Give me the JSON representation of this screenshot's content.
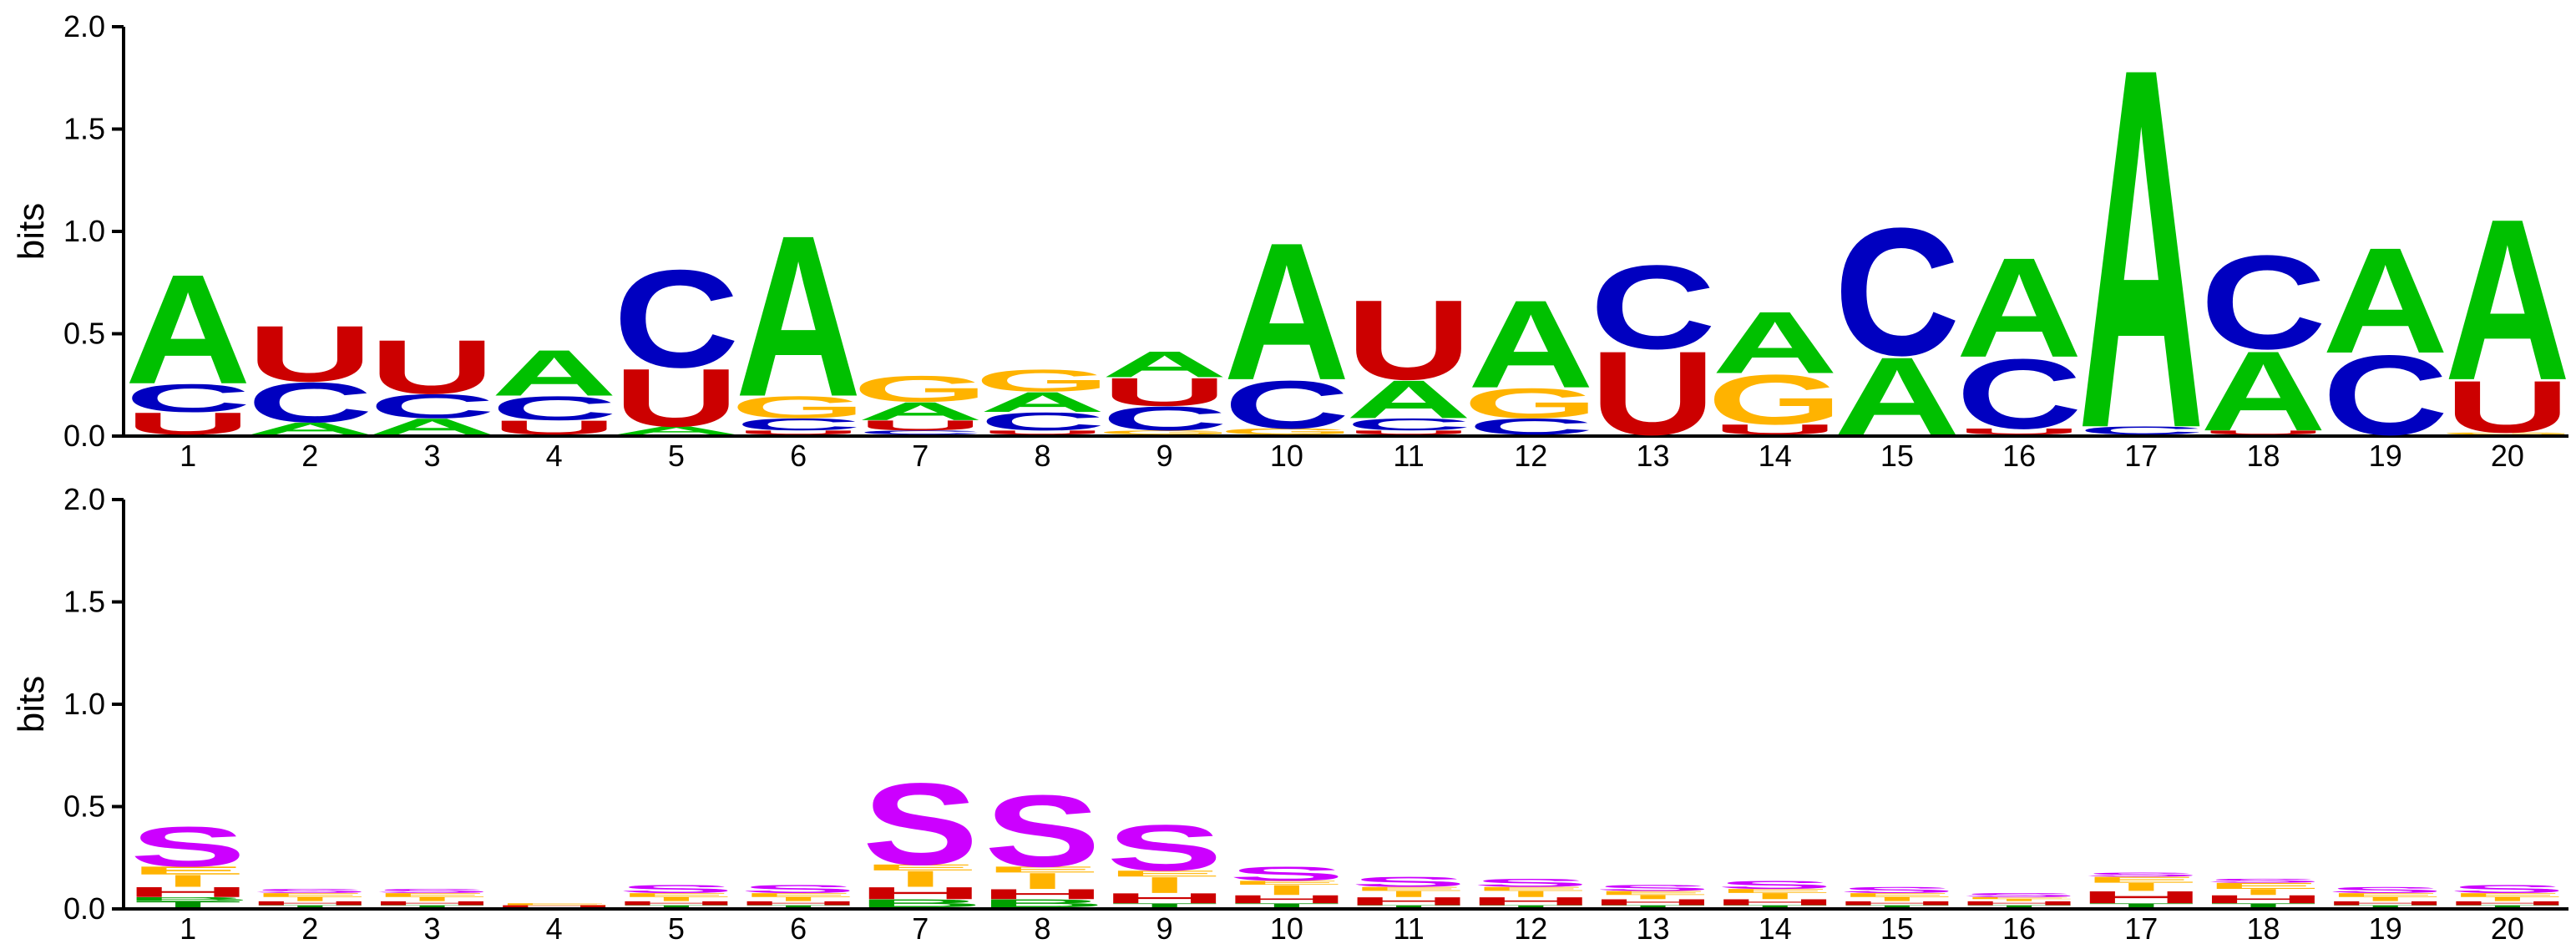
{
  "colors": {
    "A": "#00C000",
    "C": "#0000C0",
    "G": "#FFB300",
    "U": "#CC0000",
    "S": "#CC00FF",
    "H": "#CC0000",
    "B": "#00A000",
    "I": "#FFB300",
    "E": "#FFB300",
    "T": "#009000"
  },
  "chart_data": [
    {
      "type": "sequence-logo",
      "ylabel": "bits",
      "ylim": [
        0,
        2.0
      ],
      "yticks": [
        "0.0",
        "0.5",
        "1.0",
        "1.5",
        "2.0"
      ],
      "positions": [
        "1",
        "2",
        "3",
        "4",
        "5",
        "6",
        "7",
        "8",
        "9",
        "10",
        "11",
        "12",
        "13",
        "14",
        "15",
        "16",
        "17",
        "18",
        "19",
        "20"
      ],
      "stacks": [
        [
          {
            "l": "U",
            "h": 0.11
          },
          {
            "l": "C",
            "h": 0.14
          },
          {
            "l": "A",
            "h": 0.55
          }
        ],
        [
          {
            "l": "A",
            "h": 0.06
          },
          {
            "l": "C",
            "h": 0.2
          },
          {
            "l": "U",
            "h": 0.28
          }
        ],
        [
          {
            "l": "A",
            "h": 0.08
          },
          {
            "l": "C",
            "h": 0.12
          },
          {
            "l": "U",
            "h": 0.27
          }
        ],
        [
          {
            "l": "U",
            "h": 0.07
          },
          {
            "l": "C",
            "h": 0.12
          },
          {
            "l": "A",
            "h": 0.23
          }
        ],
        [
          {
            "l": "A",
            "h": 0.04
          },
          {
            "l": "U",
            "h": 0.29
          },
          {
            "l": "C",
            "h": 0.49
          }
        ],
        [
          {
            "l": "U",
            "h": 0.02
          },
          {
            "l": "C",
            "h": 0.06
          },
          {
            "l": "G",
            "h": 0.11
          },
          {
            "l": "A",
            "h": 0.81
          }
        ],
        [
          {
            "l": "C",
            "h": 0.02
          },
          {
            "l": "U",
            "h": 0.05
          },
          {
            "l": "A",
            "h": 0.09
          },
          {
            "l": "G",
            "h": 0.13
          }
        ],
        [
          {
            "l": "U",
            "h": 0.02
          },
          {
            "l": "C",
            "h": 0.09
          },
          {
            "l": "A",
            "h": 0.1
          },
          {
            "l": "G",
            "h": 0.11
          }
        ],
        [
          {
            "l": "G",
            "h": 0.02
          },
          {
            "l": "C",
            "h": 0.12
          },
          {
            "l": "U",
            "h": 0.14
          },
          {
            "l": "A",
            "h": 0.13
          }
        ],
        [
          {
            "l": "G",
            "h": 0.03
          },
          {
            "l": "C",
            "h": 0.24
          },
          {
            "l": "A",
            "h": 0.69
          }
        ],
        [
          {
            "l": "U",
            "h": 0.02
          },
          {
            "l": "C",
            "h": 0.06
          },
          {
            "l": "A",
            "h": 0.19
          },
          {
            "l": "U",
            "h": 0.4
          }
        ],
        [
          {
            "l": "C",
            "h": 0.08
          },
          {
            "l": "G",
            "h": 0.15
          },
          {
            "l": "A",
            "h": 0.44
          }
        ],
        [
          {
            "l": "U",
            "h": 0.42
          },
          {
            "l": "C",
            "h": 0.42
          }
        ],
        [
          {
            "l": "U",
            "h": 0.05
          },
          {
            "l": "G",
            "h": 0.25
          },
          {
            "l": "A",
            "h": 0.31
          }
        ],
        [
          {
            "l": "A",
            "h": 0.39
          },
          {
            "l": "C",
            "h": 0.64
          }
        ],
        [
          {
            "l": "U",
            "h": 0.03
          },
          {
            "l": "C",
            "h": 0.35
          },
          {
            "l": "A",
            "h": 0.5
          }
        ],
        [
          {
            "l": "C",
            "h": 0.04
          },
          {
            "l": "A",
            "h": 1.81
          }
        ],
        [
          {
            "l": "U",
            "h": 0.02
          },
          {
            "l": "A",
            "h": 0.4
          },
          {
            "l": "C",
            "h": 0.47
          }
        ],
        [
          {
            "l": "C",
            "h": 0.4
          },
          {
            "l": "A",
            "h": 0.53
          }
        ],
        [
          {
            "l": "G",
            "h": 0.01
          },
          {
            "l": "U",
            "h": 0.26
          },
          {
            "l": "A",
            "h": 0.81
          }
        ]
      ]
    },
    {
      "type": "sequence-logo",
      "ylabel": "bits",
      "ylim": [
        0,
        2.0
      ],
      "yticks": [
        "0.0",
        "0.5",
        "1.0",
        "1.5",
        "2.0"
      ],
      "positions": [
        "1",
        "2",
        "3",
        "4",
        "5",
        "6",
        "7",
        "8",
        "9",
        "10",
        "11",
        "12",
        "13",
        "14",
        "15",
        "16",
        "17",
        "18",
        "19",
        "20"
      ],
      "stacks": [
        [
          {
            "l": "T",
            "h": 0.03
          },
          {
            "l": "B",
            "h": 0.02
          },
          {
            "l": "H",
            "h": 0.05
          },
          {
            "l": "I",
            "h": 0.06
          },
          {
            "l": "E",
            "h": 0.04
          },
          {
            "l": "S",
            "h": 0.2
          }
        ],
        [
          {
            "l": "T",
            "h": 0.01
          },
          {
            "l": "H",
            "h": 0.02
          },
          {
            "l": "I",
            "h": 0.02
          },
          {
            "l": "E",
            "h": 0.02
          },
          {
            "l": "S",
            "h": 0.02
          }
        ],
        [
          {
            "l": "T",
            "h": 0.01
          },
          {
            "l": "H",
            "h": 0.02
          },
          {
            "l": "I",
            "h": 0.02
          },
          {
            "l": "E",
            "h": 0.02
          },
          {
            "l": "S",
            "h": 0.02
          }
        ],
        [
          {
            "l": "H",
            "h": 0.01
          },
          {
            "l": "E",
            "h": 0.01
          }
        ],
        [
          {
            "l": "T",
            "h": 0.01
          },
          {
            "l": "H",
            "h": 0.02
          },
          {
            "l": "I",
            "h": 0.02
          },
          {
            "l": "E",
            "h": 0.02
          },
          {
            "l": "S",
            "h": 0.04
          }
        ],
        [
          {
            "l": "T",
            "h": 0.01
          },
          {
            "l": "H",
            "h": 0.02
          },
          {
            "l": "I",
            "h": 0.02
          },
          {
            "l": "E",
            "h": 0.02
          },
          {
            "l": "S",
            "h": 0.04
          }
        ],
        [
          {
            "l": "B",
            "h": 0.04
          },
          {
            "l": "H",
            "h": 0.06
          },
          {
            "l": "I",
            "h": 0.08
          },
          {
            "l": "E",
            "h": 0.03
          },
          {
            "l": "S",
            "h": 0.41
          }
        ],
        [
          {
            "l": "B",
            "h": 0.04
          },
          {
            "l": "H",
            "h": 0.05
          },
          {
            "l": "I",
            "h": 0.08
          },
          {
            "l": "E",
            "h": 0.03
          },
          {
            "l": "S",
            "h": 0.36
          }
        ],
        [
          {
            "l": "T",
            "h": 0.02
          },
          {
            "l": "H",
            "h": 0.05
          },
          {
            "l": "I",
            "h": 0.08
          },
          {
            "l": "E",
            "h": 0.03
          },
          {
            "l": "S",
            "h": 0.23
          }
        ],
        [
          {
            "l": "T",
            "h": 0.02
          },
          {
            "l": "H",
            "h": 0.04
          },
          {
            "l": "I",
            "h": 0.05
          },
          {
            "l": "E",
            "h": 0.02
          },
          {
            "l": "S",
            "h": 0.07
          }
        ],
        [
          {
            "l": "T",
            "h": 0.01
          },
          {
            "l": "H",
            "h": 0.04
          },
          {
            "l": "I",
            "h": 0.03
          },
          {
            "l": "E",
            "h": 0.02
          },
          {
            "l": "S",
            "h": 0.05
          }
        ],
        [
          {
            "l": "T",
            "h": 0.01
          },
          {
            "l": "H",
            "h": 0.04
          },
          {
            "l": "I",
            "h": 0.03
          },
          {
            "l": "E",
            "h": 0.02
          },
          {
            "l": "S",
            "h": 0.04
          }
        ],
        [
          {
            "l": "T",
            "h": 0.01
          },
          {
            "l": "H",
            "h": 0.03
          },
          {
            "l": "I",
            "h": 0.02
          },
          {
            "l": "E",
            "h": 0.02
          },
          {
            "l": "S",
            "h": 0.03
          }
        ],
        [
          {
            "l": "T",
            "h": 0.01
          },
          {
            "l": "H",
            "h": 0.03
          },
          {
            "l": "I",
            "h": 0.03
          },
          {
            "l": "E",
            "h": 0.02
          },
          {
            "l": "S",
            "h": 0.04
          }
        ],
        [
          {
            "l": "T",
            "h": 0.01
          },
          {
            "l": "H",
            "h": 0.02
          },
          {
            "l": "I",
            "h": 0.02
          },
          {
            "l": "E",
            "h": 0.02
          },
          {
            "l": "S",
            "h": 0.03
          }
        ],
        [
          {
            "l": "T",
            "h": 0.01
          },
          {
            "l": "H",
            "h": 0.02
          },
          {
            "l": "I",
            "h": 0.01
          },
          {
            "l": "E",
            "h": 0.01
          },
          {
            "l": "S",
            "h": 0.02
          }
        ],
        [
          {
            "l": "T",
            "h": 0.02
          },
          {
            "l": "H",
            "h": 0.06
          },
          {
            "l": "I",
            "h": 0.04
          },
          {
            "l": "E",
            "h": 0.03
          },
          {
            "l": "S",
            "h": 0.02
          }
        ],
        [
          {
            "l": "T",
            "h": 0.02
          },
          {
            "l": "H",
            "h": 0.04
          },
          {
            "l": "I",
            "h": 0.03
          },
          {
            "l": "E",
            "h": 0.03
          },
          {
            "l": "S",
            "h": 0.02
          }
        ],
        [
          {
            "l": "T",
            "h": 0.01
          },
          {
            "l": "H",
            "h": 0.02
          },
          {
            "l": "I",
            "h": 0.02
          },
          {
            "l": "E",
            "h": 0.02
          },
          {
            "l": "S",
            "h": 0.03
          }
        ],
        [
          {
            "l": "T",
            "h": 0.01
          },
          {
            "l": "H",
            "h": 0.02
          },
          {
            "l": "I",
            "h": 0.02
          },
          {
            "l": "E",
            "h": 0.02
          },
          {
            "l": "S",
            "h": 0.04
          }
        ]
      ]
    }
  ]
}
